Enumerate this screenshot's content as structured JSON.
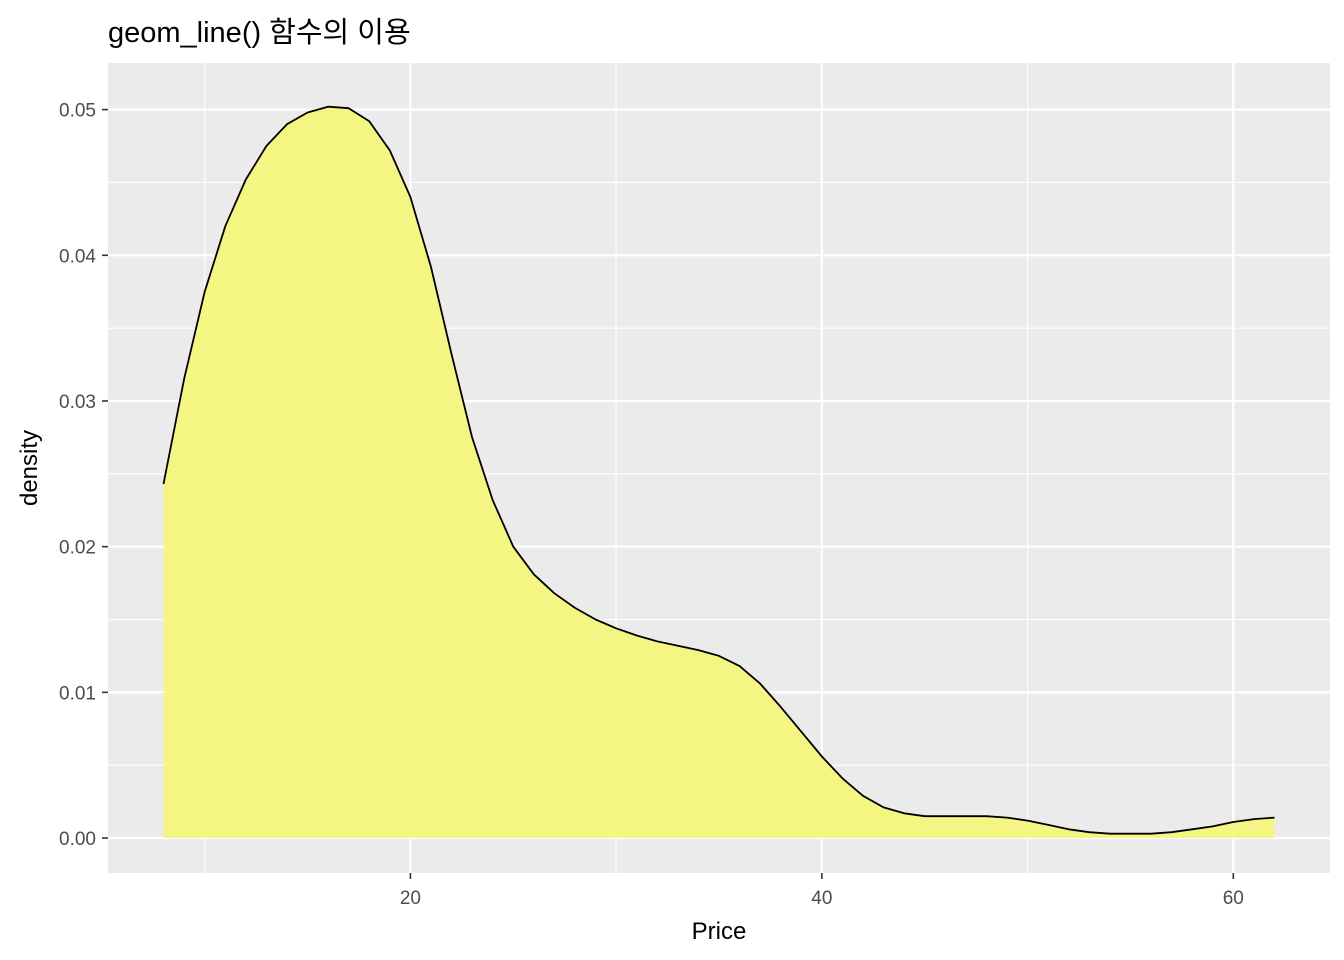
{
  "chart_data": {
    "type": "area",
    "title": "geom_line() 함수의 이용",
    "xlabel": "Price",
    "ylabel": "density",
    "xlim": [
      5.3,
      64.7
    ],
    "ylim": [
      -0.0024,
      0.0532
    ],
    "x_ticks": [
      20,
      40,
      60
    ],
    "x_tick_labels": [
      "20",
      "40",
      "60"
    ],
    "x_minor_ticks": [
      10,
      30,
      50
    ],
    "y_ticks": [
      0,
      0.01,
      0.02,
      0.03,
      0.04,
      0.05
    ],
    "y_tick_labels": [
      "0.00",
      "0.01",
      "0.02",
      "0.03",
      "0.04",
      "0.05"
    ],
    "y_minor_ticks": [
      0.005,
      0.015,
      0.025,
      0.035,
      0.045
    ],
    "grid": true,
    "legend": "none",
    "colors": {
      "panel_background": "#ebebeb",
      "grid": "#ffffff",
      "fill": "#f5f57a",
      "line": "#000000"
    },
    "series": [
      {
        "x": [
          8.0,
          9.0,
          10.0,
          11.0,
          12.0,
          13.0,
          14.0,
          15.0,
          16.0,
          17.0,
          18.0,
          19.0,
          20.0,
          21.0,
          22.0,
          23.0,
          24.0,
          25.0,
          26.0,
          27.0,
          28.0,
          29.0,
          30.0,
          31.0,
          32.0,
          33.0,
          34.0,
          35.0,
          36.0,
          37.0,
          38.0,
          39.0,
          40.0,
          41.0,
          42.0,
          43.0,
          44.0,
          45.0,
          46.0,
          47.0,
          48.0,
          49.0,
          50.0,
          51.0,
          52.0,
          53.0,
          54.0,
          55.0,
          56.0,
          57.0,
          58.0,
          59.0,
          60.0,
          61.0,
          62.0
        ],
        "y": [
          0.0243,
          0.0315,
          0.0375,
          0.042,
          0.0452,
          0.0475,
          0.049,
          0.0498,
          0.0502,
          0.0501,
          0.0492,
          0.0472,
          0.044,
          0.0392,
          0.0332,
          0.0275,
          0.0232,
          0.02,
          0.0181,
          0.0168,
          0.0158,
          0.015,
          0.0144,
          0.0139,
          0.0135,
          0.0132,
          0.0129,
          0.0125,
          0.0118,
          0.0106,
          0.009,
          0.0073,
          0.0056,
          0.0041,
          0.0029,
          0.0021,
          0.0017,
          0.0015,
          0.0015,
          0.0015,
          0.0015,
          0.0014,
          0.0012,
          0.0009,
          0.0006,
          0.0004,
          0.0003,
          0.0003,
          0.0003,
          0.0004,
          0.0006,
          0.0008,
          0.0011,
          0.0013,
          0.0014
        ]
      }
    ]
  }
}
